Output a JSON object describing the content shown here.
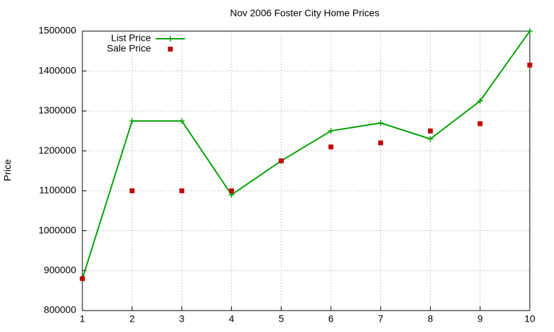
{
  "chart_data": {
    "type": "line",
    "title": "Nov 2006 Foster City Home Prices",
    "y_label": "Price",
    "x": [
      1,
      2,
      3,
      4,
      5,
      6,
      7,
      8,
      9,
      10
    ],
    "series": [
      {
        "name": "List Price",
        "color": "#00a000",
        "mode": "linespoints",
        "marker": "plus",
        "values": [
          880000,
          1275000,
          1275000,
          1090000,
          1175000,
          1250000,
          1270000,
          1230000,
          1325000,
          1500000
        ]
      },
      {
        "name": "Sale Price",
        "color": "#c00000",
        "mode": "points",
        "marker": "square",
        "values": [
          880000,
          1100000,
          1100000,
          1100000,
          1175000,
          1210000,
          1220000,
          1250000,
          1268000,
          1415000
        ]
      }
    ],
    "xlim": [
      1,
      10
    ],
    "xticks": [
      1,
      2,
      3,
      4,
      5,
      6,
      7,
      8,
      9,
      10
    ],
    "ylim": [
      800000,
      1500000
    ],
    "yticks": [
      800000,
      900000,
      1000000,
      1100000,
      1200000,
      1300000,
      1400000,
      1500000
    ],
    "grid": true,
    "legend": "top-left"
  }
}
